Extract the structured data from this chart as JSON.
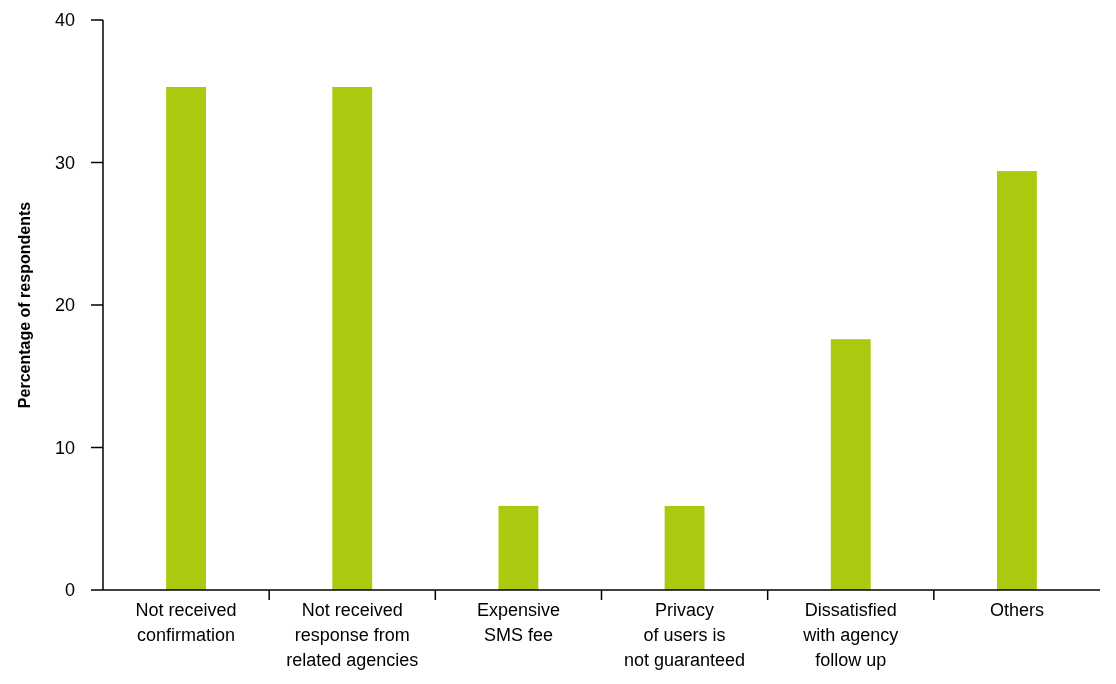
{
  "chart_data": {
    "type": "bar",
    "ylabel": "Percentage of respondents",
    "categories": [
      "Not received\nconfirmation",
      "Not received\nresponse from\nrelated agencies",
      "Expensive\nSMS fee",
      "Privacy\nof users is\nnot guaranteed",
      "Dissatisfied\nwith agency\nfollow up",
      "Others"
    ],
    "values": [
      35.3,
      35.3,
      5.9,
      5.9,
      17.6,
      29.4
    ],
    "color": "#adc90f",
    "ylim": [
      0,
      40
    ],
    "yticks": [
      0,
      10,
      20,
      30,
      40
    ],
    "grid": false
  }
}
